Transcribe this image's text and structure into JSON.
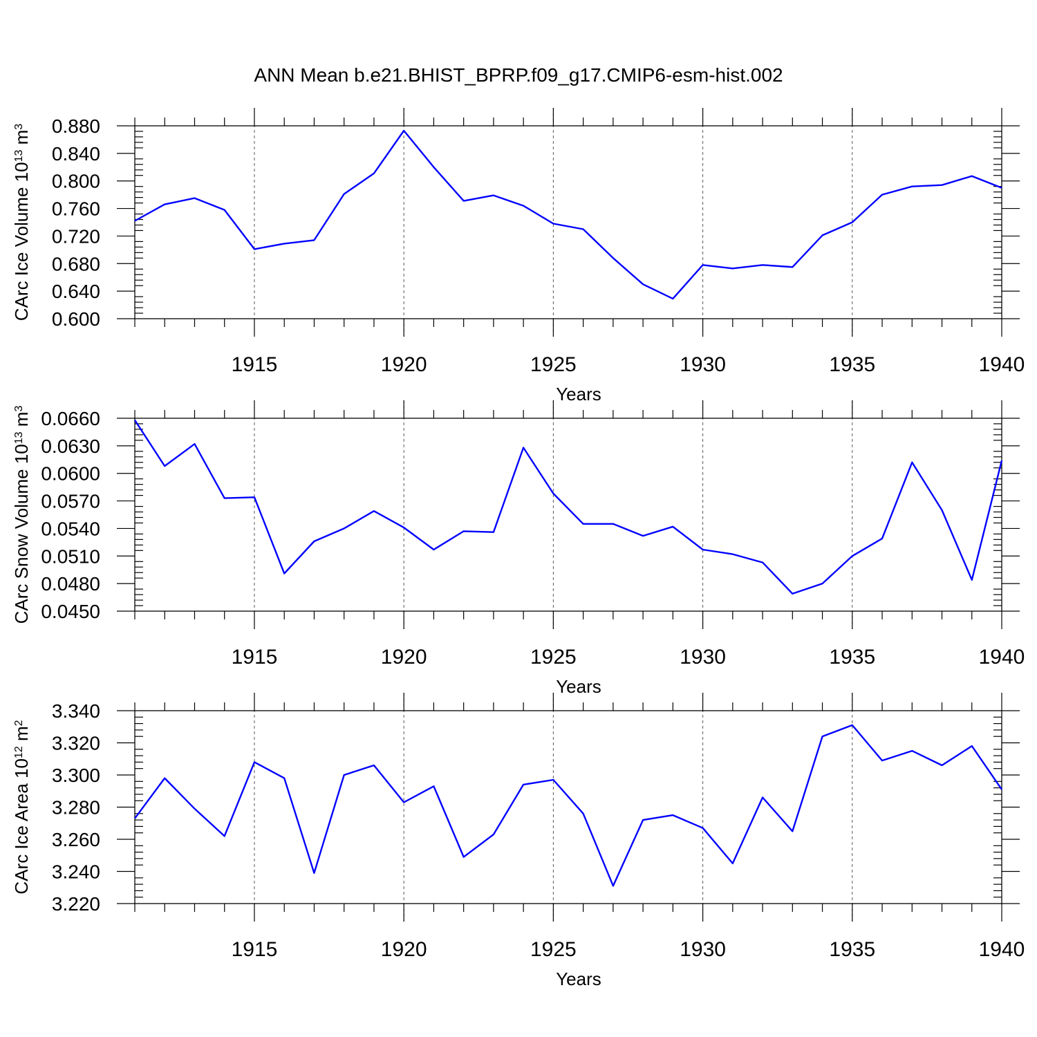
{
  "title": "ANN Mean b.e21.BHIST_BPRP.f09_g17.CMIP6-esm-hist.002",
  "line_color": "#0000ff",
  "chart_data": [
    {
      "type": "line",
      "ylabel": {
        "main": "CArc Ice Volume 10",
        "exp": "13",
        "unit": " m",
        "unit_exp": "3"
      },
      "xlabel": "Years",
      "xlim": [
        1911,
        1940
      ],
      "xticks": [
        1915,
        1920,
        1925,
        1930,
        1935,
        1940
      ],
      "xtick_labels": [
        "1915",
        "1920",
        "1925",
        "1930",
        "1935",
        "1940"
      ],
      "ylim": [
        0.6,
        0.88
      ],
      "yticks": [
        0.6,
        0.64,
        0.68,
        0.72,
        0.76,
        0.8,
        0.84,
        0.88
      ],
      "ytick_labels": [
        "0.600",
        "0.640",
        "0.680",
        "0.720",
        "0.760",
        "0.800",
        "0.840",
        "0.880"
      ],
      "x": [
        1911,
        1912,
        1913,
        1914,
        1915,
        1916,
        1917,
        1918,
        1919,
        1920,
        1921,
        1922,
        1923,
        1924,
        1925,
        1926,
        1927,
        1928,
        1929,
        1930,
        1931,
        1932,
        1933,
        1934,
        1935,
        1936,
        1937,
        1938,
        1939,
        1940
      ],
      "y": [
        0.742,
        0.766,
        0.775,
        0.758,
        0.701,
        0.709,
        0.714,
        0.781,
        0.811,
        0.873,
        0.82,
        0.771,
        0.779,
        0.764,
        0.738,
        0.73,
        0.688,
        0.65,
        0.629,
        0.678,
        0.673,
        0.678,
        0.675,
        0.721,
        0.74,
        0.78,
        0.792,
        0.794,
        0.807,
        0.79
      ]
    },
    {
      "type": "line",
      "ylabel": {
        "main": "CArc Snow Volume 10",
        "exp": "13",
        "unit": " m",
        "unit_exp": "3"
      },
      "xlabel": "Years",
      "xlim": [
        1911,
        1940
      ],
      "xticks": [
        1915,
        1920,
        1925,
        1930,
        1935,
        1940
      ],
      "xtick_labels": [
        "1915",
        "1920",
        "1925",
        "1930",
        "1935",
        "1940"
      ],
      "ylim": [
        0.045,
        0.066
      ],
      "yticks": [
        0.045,
        0.048,
        0.051,
        0.054,
        0.057,
        0.06,
        0.063,
        0.066
      ],
      "ytick_labels": [
        "0.0450",
        "0.0480",
        "0.0510",
        "0.0540",
        "0.0570",
        "0.0600",
        "0.0630",
        "0.0660"
      ],
      "x": [
        1911,
        1912,
        1913,
        1914,
        1915,
        1916,
        1917,
        1918,
        1919,
        1920,
        1921,
        1922,
        1923,
        1924,
        1925,
        1926,
        1927,
        1928,
        1929,
        1930,
        1931,
        1932,
        1933,
        1934,
        1935,
        1936,
        1937,
        1938,
        1939,
        1940
      ],
      "y": [
        0.0658,
        0.0608,
        0.0632,
        0.0573,
        0.0574,
        0.0491,
        0.0526,
        0.054,
        0.0559,
        0.0541,
        0.0517,
        0.0537,
        0.0536,
        0.0628,
        0.0578,
        0.0545,
        0.0545,
        0.0532,
        0.0542,
        0.0517,
        0.0512,
        0.0503,
        0.0469,
        0.048,
        0.051,
        0.0529,
        0.0612,
        0.056,
        0.0484,
        0.0614
      ]
    },
    {
      "type": "line",
      "ylabel": {
        "main": "CArc Ice Area 10",
        "exp": "12",
        "unit": " m",
        "unit_exp": "2"
      },
      "xlabel": "Years",
      "xlim": [
        1911,
        1940
      ],
      "xticks": [
        1915,
        1920,
        1925,
        1930,
        1935,
        1940
      ],
      "xtick_labels": [
        "1915",
        "1920",
        "1925",
        "1930",
        "1935",
        "1940"
      ],
      "ylim": [
        3.22,
        3.34
      ],
      "yticks": [
        3.22,
        3.24,
        3.26,
        3.28,
        3.3,
        3.32,
        3.34
      ],
      "ytick_labels": [
        "3.220",
        "3.240",
        "3.260",
        "3.280",
        "3.300",
        "3.320",
        "3.340"
      ],
      "x": [
        1911,
        1912,
        1913,
        1914,
        1915,
        1916,
        1917,
        1918,
        1919,
        1920,
        1921,
        1922,
        1923,
        1924,
        1925,
        1926,
        1927,
        1928,
        1929,
        1930,
        1931,
        1932,
        1933,
        1934,
        1935,
        1936,
        1937,
        1938,
        1939,
        1940
      ],
      "y": [
        3.273,
        3.298,
        3.279,
        3.262,
        3.308,
        3.298,
        3.239,
        3.3,
        3.306,
        3.283,
        3.293,
        3.249,
        3.263,
        3.294,
        3.297,
        3.276,
        3.231,
        3.272,
        3.275,
        3.267,
        3.245,
        3.286,
        3.265,
        3.324,
        3.331,
        3.309,
        3.315,
        3.306,
        3.318,
        3.291
      ]
    }
  ]
}
